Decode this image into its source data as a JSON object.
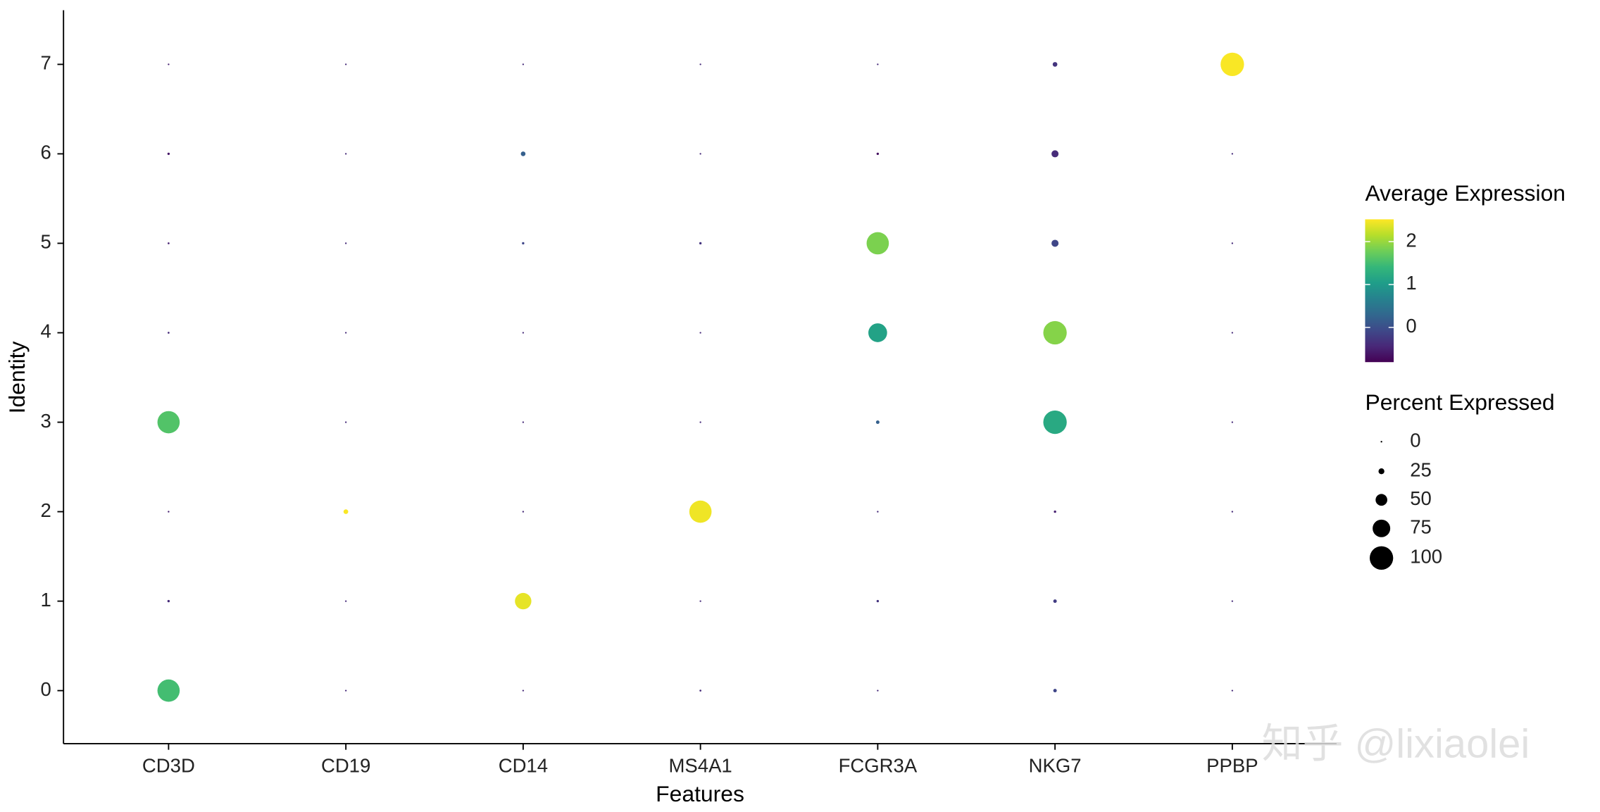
{
  "chart_data": {
    "type": "dot",
    "x_label": "Features",
    "y_label": "Identity",
    "categories": [
      "CD3D",
      "CD19",
      "CD14",
      "MS4A1",
      "FCGR3A",
      "NKG7",
      "PPBP"
    ],
    "identities": [
      "0",
      "1",
      "2",
      "3",
      "4",
      "5",
      "6",
      "7"
    ],
    "avg_expression": [
      [
        1.5,
        -0.4,
        -0.5,
        1.6,
        -0.4,
        -0.5,
        -0.6,
        -0.5
      ],
      [
        -0.4,
        -0.4,
        2.5,
        -0.4,
        -0.4,
        -0.4,
        -0.4,
        -0.4
      ],
      [
        -0.4,
        2.4,
        -0.4,
        -0.4,
        -0.4,
        -0.1,
        0.2,
        -0.4
      ],
      [
        -0.4,
        -0.4,
        2.45,
        -0.4,
        -0.4,
        -0.3,
        -0.4,
        -0.4
      ],
      [
        -0.4,
        -0.3,
        -0.4,
        0.2,
        1.1,
        1.85,
        -0.7,
        -0.4
      ],
      [
        -0.1,
        -0.2,
        -0.5,
        1.2,
        1.9,
        -0.1,
        -0.4,
        -0.3
      ],
      [
        -0.4,
        -0.4,
        -0.4,
        -0.4,
        -0.4,
        -0.4,
        -0.4,
        2.5
      ]
    ],
    "pct_expressed": [
      [
        95,
        10,
        5,
        95,
        8,
        8,
        10,
        3
      ],
      [
        1,
        1,
        20,
        1,
        1,
        1,
        1,
        1
      ],
      [
        2,
        70,
        2,
        2,
        2,
        10,
        20,
        3
      ],
      [
        8,
        5,
        95,
        3,
        5,
        10,
        5,
        5
      ],
      [
        2,
        10,
        2,
        15,
        80,
        95,
        10,
        3
      ],
      [
        15,
        15,
        10,
        100,
        100,
        30,
        30,
        20
      ],
      [
        1,
        5,
        1,
        1,
        1,
        5,
        1,
        100
      ]
    ],
    "color_legend_title": "Average Expression",
    "color_lim": [
      -0.81,
      2.52
    ],
    "color_ticks": [
      0,
      1,
      2
    ],
    "colorscale": [
      "#440154",
      "#482878",
      "#3e4989",
      "#31688e",
      "#26828e",
      "#1f9e89",
      "#35b779",
      "#6ece58",
      "#b5de2b",
      "#fde725"
    ],
    "size_legend_title": "Percent Expressed",
    "size_ticks": [
      0,
      25,
      50,
      75,
      100
    ],
    "watermark": "知乎 @lixiaolei"
  }
}
